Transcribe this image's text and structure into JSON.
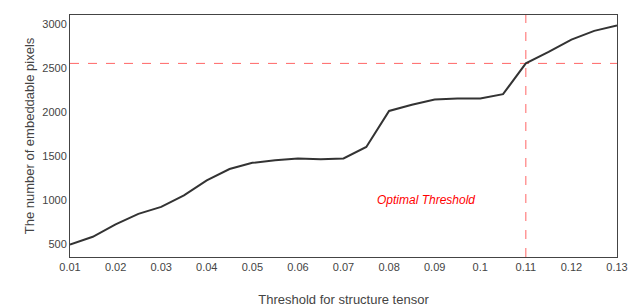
{
  "chart_data": {
    "type": "line",
    "x": [
      0.01,
      0.015,
      0.02,
      0.025,
      0.03,
      0.035,
      0.04,
      0.045,
      0.05,
      0.055,
      0.06,
      0.065,
      0.07,
      0.075,
      0.08,
      0.085,
      0.09,
      0.095,
      0.1,
      0.105,
      0.11,
      0.115,
      0.12,
      0.125,
      0.13
    ],
    "series": [
      {
        "color": "#333333",
        "line_style": "solid",
        "values": [
          490,
          580,
          720,
          840,
          920,
          1050,
          1220,
          1350,
          1420,
          1450,
          1470,
          1460,
          1470,
          1600,
          2010,
          2080,
          2140,
          2150,
          2150,
          2200,
          2550,
          2680,
          2820,
          2920,
          2980
        ]
      }
    ],
    "reference_lines": [
      {
        "y": 2550,
        "color": "#ff6666",
        "line_style": "dashed"
      },
      {
        "x": 0.11,
        "color": "#ff6666",
        "line_style": "dashed"
      }
    ],
    "annotations": [
      {
        "text": "Optimal Threshold",
        "x": 0.077,
        "y": 900,
        "color": "#ff0000"
      }
    ],
    "xlim": [
      0.01,
      0.13
    ],
    "ylim": [
      350,
      3100
    ],
    "xticks": [
      0.01,
      0.02,
      0.03,
      0.04,
      0.05,
      0.06,
      0.07,
      0.08,
      0.09,
      0.1,
      0.11,
      0.12,
      0.13
    ],
    "yticks": [
      500,
      1000,
      1500,
      2000,
      2500,
      3000
    ],
    "xlabel": "Threshold for structure tensor",
    "ylabel": "The number of embeddable pixels",
    "grid": false
  }
}
